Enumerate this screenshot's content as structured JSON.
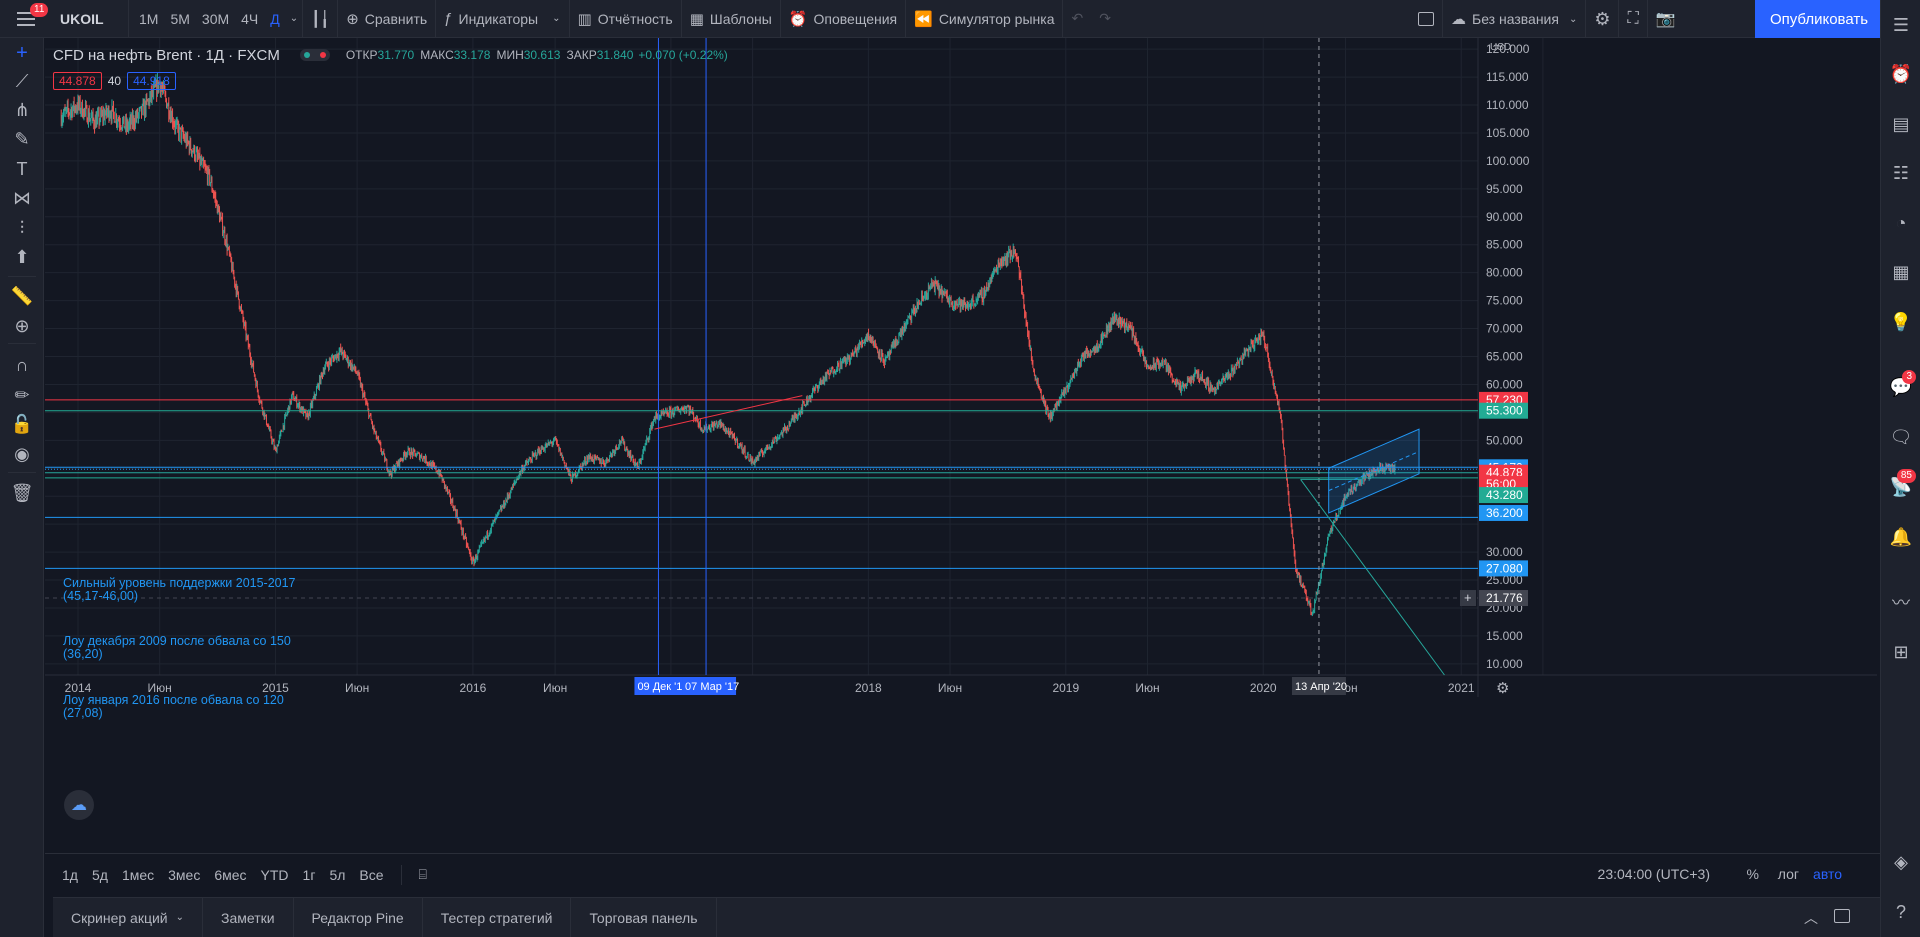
{
  "topbar": {
    "menu_badge": "11",
    "symbol": "UKOIL",
    "timeframes": [
      "1М",
      "5М",
      "30М",
      "4Ч",
      "Д"
    ],
    "compare": "Сравнить",
    "indicators": "Индикаторы",
    "reports": "Отчётность",
    "templates": "Шаблоны",
    "alerts": "Оповещения",
    "replay": "Симулятор рынка",
    "layout_name": "Без названия",
    "publish": "Опубликовать"
  },
  "legend": {
    "title": "CFD на нефть Brent",
    "interval": "1Д",
    "exchange": "FXCM",
    "open_label": "ОТКР",
    "open": "31.770",
    "high_label": "МАКС",
    "high": "33.178",
    "low_label": "МИН",
    "low": "30.613",
    "close_label": "ЗАКР",
    "close": "31.840",
    "change": "+0.070 (+0.22%)",
    "bid": "44.878",
    "spread": "40",
    "ask": "44.918"
  },
  "annotations": [
    {
      "line1": "Сильный уровень поддержки 2015-2017",
      "line2": "(45,17-46,00)"
    },
    {
      "line1": "Лоу декабря 2009 после обвала со 150",
      "line2": "(36,20)"
    },
    {
      "line1": "Лоу января 2016 после обвала со 120",
      "line2": "(27,08)"
    }
  ],
  "chart_data": {
    "type": "candlestick",
    "currency": "USD",
    "x_labels": [
      "2014",
      "Июн",
      "2015",
      "Июн",
      "2016",
      "Июн",
      "2018",
      "Июн",
      "2019",
      "Июн",
      "2020",
      "Июн",
      "2021"
    ],
    "y_ticks": [
      "120.000",
      "115.000",
      "110.000",
      "105.000",
      "100.000",
      "95.000",
      "90.000",
      "85.000",
      "80.000",
      "75.000",
      "70.000",
      "65.000",
      "60.000",
      "50.000",
      "30.000",
      "25.000",
      "20.000",
      "15.000",
      "10.000"
    ],
    "ylim": [
      8,
      122
    ],
    "series_path": [
      [
        "2013-12",
        108
      ],
      [
        "2014-01",
        110
      ],
      [
        "2014-02",
        107
      ],
      [
        "2014-03",
        109
      ],
      [
        "2014-04",
        106
      ],
      [
        "2014-05",
        109
      ],
      [
        "2014-06",
        114
      ],
      [
        "2014-07",
        106
      ],
      [
        "2014-08",
        102
      ],
      [
        "2014-09",
        97
      ],
      [
        "2014-10",
        86
      ],
      [
        "2014-11",
        72
      ],
      [
        "2014-12",
        58
      ],
      [
        "2015-01",
        48
      ],
      [
        "2015-02",
        58
      ],
      [
        "2015-03",
        54
      ],
      [
        "2015-04",
        63
      ],
      [
        "2015-05",
        66
      ],
      [
        "2015-06",
        62
      ],
      [
        "2015-07",
        52
      ],
      [
        "2015-08",
        44
      ],
      [
        "2015-09",
        48
      ],
      [
        "2015-10",
        47
      ],
      [
        "2015-11",
        44
      ],
      [
        "2015-12",
        37
      ],
      [
        "2016-01",
        28
      ],
      [
        "2016-02",
        34
      ],
      [
        "2016-03",
        39
      ],
      [
        "2016-04",
        45
      ],
      [
        "2016-05",
        48
      ],
      [
        "2016-06",
        50
      ],
      [
        "2016-07",
        43
      ],
      [
        "2016-08",
        47
      ],
      [
        "2016-09",
        46
      ],
      [
        "2016-10",
        50
      ],
      [
        "2016-11",
        45
      ],
      [
        "2016-12",
        54
      ],
      [
        "2017-01",
        55
      ],
      [
        "2017-02",
        56
      ],
      [
        "2017-03",
        52
      ],
      [
        "2017-04",
        53
      ],
      [
        "2017-05",
        50
      ],
      [
        "2017-06",
        46
      ],
      [
        "2017-07",
        49
      ],
      [
        "2017-08",
        52
      ],
      [
        "2017-09",
        56
      ],
      [
        "2017-10",
        60
      ],
      [
        "2017-11",
        63
      ],
      [
        "2017-12",
        65
      ],
      [
        "2018-01",
        69
      ],
      [
        "2018-02",
        64
      ],
      [
        "2018-03",
        69
      ],
      [
        "2018-04",
        74
      ],
      [
        "2018-05",
        78
      ],
      [
        "2018-06",
        75
      ],
      [
        "2018-07",
        74
      ],
      [
        "2018-08",
        76
      ],
      [
        "2018-09",
        82
      ],
      [
        "2018-10",
        84
      ],
      [
        "2018-11",
        63
      ],
      [
        "2018-12",
        54
      ],
      [
        "2019-01",
        59
      ],
      [
        "2019-02",
        65
      ],
      [
        "2019-03",
        67
      ],
      [
        "2019-04",
        72
      ],
      [
        "2019-05",
        70
      ],
      [
        "2019-06",
        63
      ],
      [
        "2019-07",
        64
      ],
      [
        "2019-08",
        59
      ],
      [
        "2019-09",
        62
      ],
      [
        "2019-10",
        59
      ],
      [
        "2019-11",
        62
      ],
      [
        "2019-12",
        66
      ],
      [
        "2020-01",
        69
      ],
      [
        "2020-02",
        55
      ],
      [
        "2020-03",
        27
      ],
      [
        "2020-04",
        19
      ],
      [
        "2020-05",
        33
      ],
      [
        "2020-06",
        40
      ],
      [
        "2020-07",
        43
      ],
      [
        "2020-08",
        45
      ],
      [
        "2020-09",
        44.9
      ]
    ],
    "levels": [
      {
        "price": 57.23,
        "label": "57.230",
        "color": "#f23645"
      },
      {
        "price": 55.3,
        "label": "55.300",
        "color": "#22ab94"
      },
      {
        "price": 45.17,
        "label": "45.170",
        "color": "#2196f3"
      },
      {
        "price": 44.878,
        "label": "44.878",
        "color": "#f23645"
      },
      {
        "price": 42.0,
        "label": "56:00",
        "color": "#f23645"
      },
      {
        "price": 43.28,
        "label": "43.280",
        "color": "#22ab94"
      },
      {
        "price": 36.2,
        "label": "36.200",
        "color": "#2196f3"
      },
      {
        "price": 27.08,
        "label": "27.080",
        "color": "#2196f3"
      },
      {
        "price": 21.776,
        "label": "21.776",
        "color": "#434651"
      }
    ],
    "time_markers": [
      "09 Дек '1",
      "07 Мар '17",
      "13 Апр '20"
    ]
  },
  "rangebar": {
    "ranges": [
      "1д",
      "5д",
      "1мес",
      "3мес",
      "6мес",
      "YTD",
      "1г",
      "5л",
      "Все"
    ],
    "clock": "23:04:00 (UTC+3)",
    "percent": "%",
    "log": "лог",
    "auto": "авто"
  },
  "panels": [
    "Скринер акций",
    "Заметки",
    "Редактор Pine",
    "Тестер стратегий",
    "Торговая панель"
  ],
  "badges": {
    "chat": "3",
    "notifications": "85"
  }
}
